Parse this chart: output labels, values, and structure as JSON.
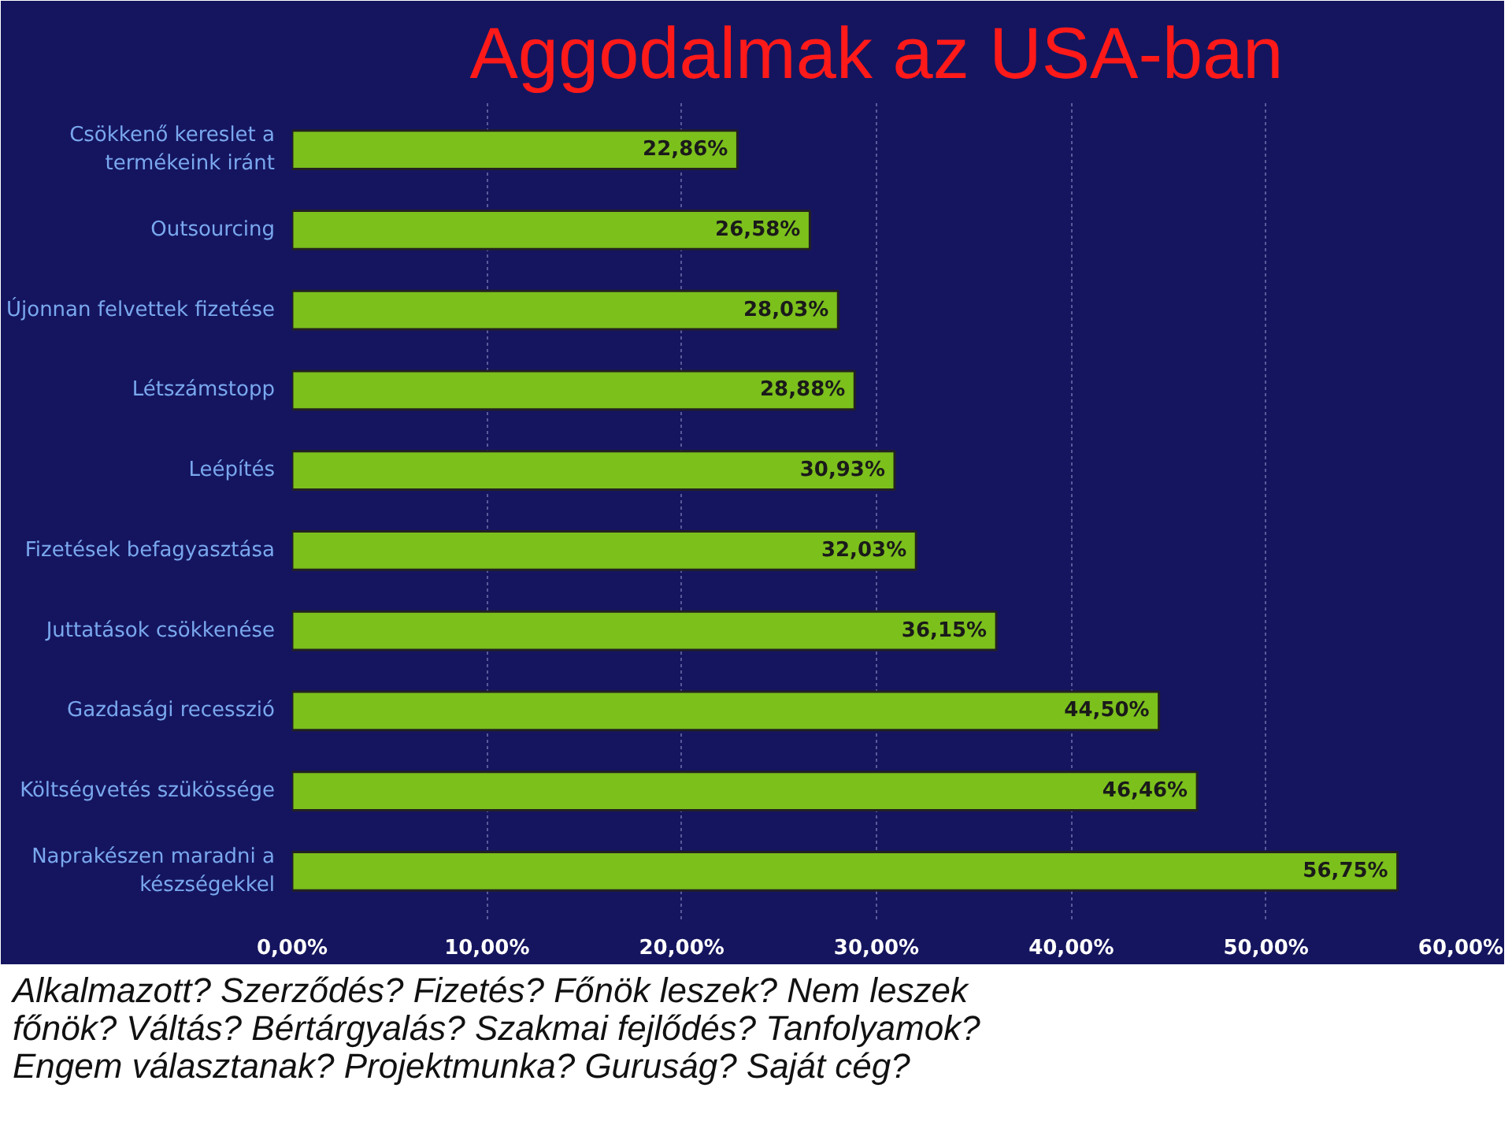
{
  "chart_data": {
    "type": "bar",
    "orientation": "horizontal",
    "title": "Aggodalmak az USA-ban",
    "categories": [
      "Csökkenő kereslet a termékeink iránt",
      "Outsourcing",
      "Újonnan felvettek fizetése",
      "Létszámstopp",
      "Leépítés",
      "Fizetések befagyasztása",
      "Juttatások csökkenése",
      "Gazdasági recesszió",
      "Költségvetés szükössége",
      "Naprakészen maradni a készségekkel"
    ],
    "values": [
      22.86,
      26.58,
      28.03,
      28.88,
      30.93,
      32.03,
      36.15,
      44.5,
      46.46,
      56.75
    ],
    "value_labels": [
      "22,86%",
      "26,58%",
      "28,03%",
      "28,88%",
      "30,93%",
      "32,03%",
      "36,15%",
      "44,50%",
      "46,46%",
      "56,75%"
    ],
    "color": "#7cc01c",
    "xlim": [
      0,
      60
    ],
    "xticks": [
      {
        "value": 0,
        "label": "0,00%"
      },
      {
        "value": 10,
        "label": "10,00%"
      },
      {
        "value": 20,
        "label": "20,00%"
      },
      {
        "value": 30,
        "label": "30,00%"
      },
      {
        "value": 40,
        "label": "40,00%"
      },
      {
        "value": 50,
        "label": "50,00%"
      },
      {
        "value": 60,
        "label": "60,00%"
      }
    ],
    "grid": "x",
    "annotations": [
      "Alkalmazott? Szerződés? Fizetés? Főnök leszek? Nem leszek főnök? Váltás? Bértárgyalás? Szakmai fejlődés? Tanfolyamok? Engem választanak? Projektmunka? Guruság? Saját cég?"
    ]
  }
}
